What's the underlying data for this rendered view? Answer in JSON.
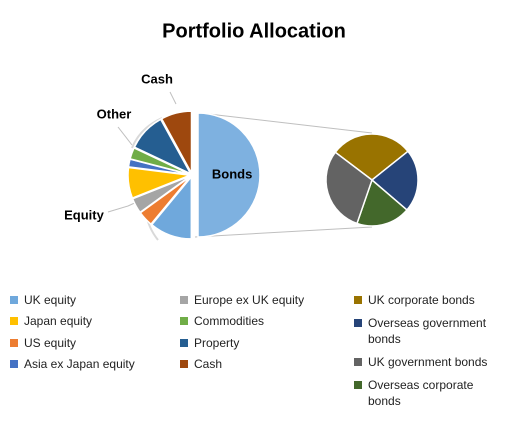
{
  "chart_data": {
    "type": "pie-of-pie",
    "title": "Portfolio Allocation",
    "bonds": {
      "label": "Bonds",
      "value": 50,
      "color": "#7eb1e0"
    },
    "slices": [
      {
        "name": "UK equity",
        "color": "#6fa8dc",
        "value": 11
      },
      {
        "name": "US equity",
        "color": "#ed7d31",
        "value": 4
      },
      {
        "name": "Europe ex UK equity",
        "color": "#a5a5a5",
        "value": 4
      },
      {
        "name": "Japan equity",
        "color": "#ffc000",
        "value": 8
      },
      {
        "name": "Asia ex Japan equity",
        "color": "#4472c4",
        "value": 2
      },
      {
        "name": "Commodities",
        "color": "#70ad47",
        "value": 3
      },
      {
        "name": "Property",
        "color": "#255e91",
        "value": 10
      },
      {
        "name": "Cash",
        "color": "#9e480e",
        "value": 8
      }
    ],
    "bond_slices": [
      {
        "name": "UK corporate bonds",
        "color": "#997300",
        "value": 29
      },
      {
        "name": "Overseas government bonds",
        "color": "#264478",
        "value": 22
      },
      {
        "name": "Overseas corporate bonds",
        "color": "#43682b",
        "value": 19
      },
      {
        "name": "UK government bonds",
        "color": "#636363",
        "value": 30
      }
    ],
    "group_labels": [
      "Equity",
      "Other",
      "Cash"
    ]
  }
}
